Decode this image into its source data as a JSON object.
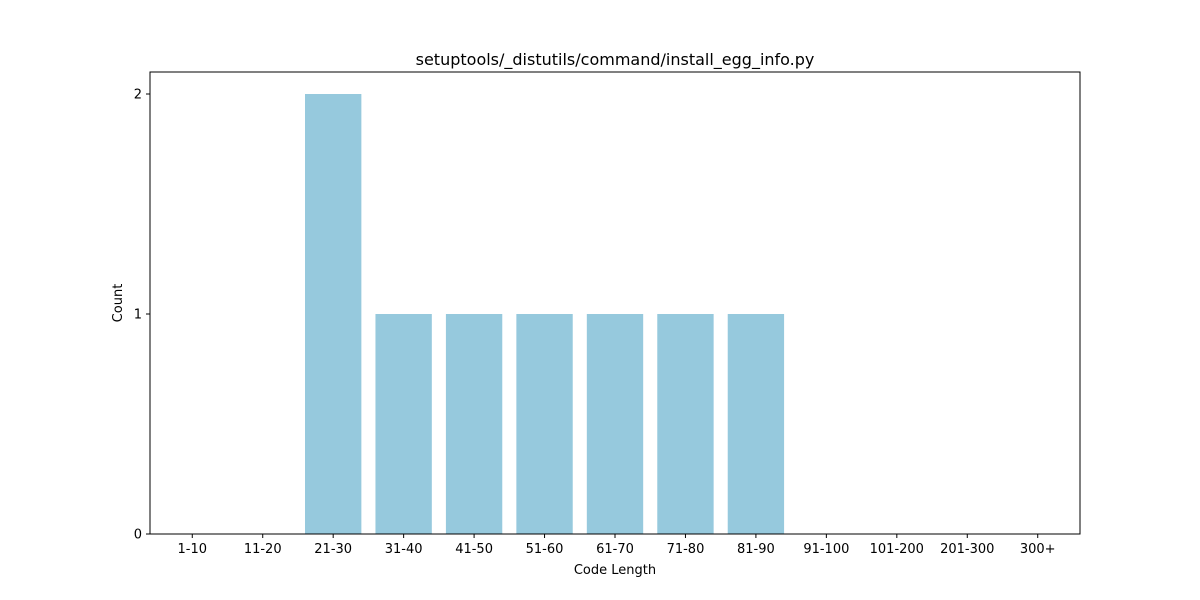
{
  "chart_data": {
    "type": "bar",
    "title": "setuptools/_distutils/command/install_egg_info.py",
    "xlabel": "Code Length",
    "ylabel": "Count",
    "categories": [
      "1-10",
      "11-20",
      "21-30",
      "31-40",
      "41-50",
      "51-60",
      "61-70",
      "71-80",
      "81-90",
      "91-100",
      "101-200",
      "201-300",
      "300+"
    ],
    "values": [
      0,
      0,
      2,
      1,
      1,
      1,
      1,
      1,
      1,
      0,
      0,
      0,
      0
    ],
    "yticks": [
      0,
      1,
      2
    ],
    "ylim": [
      0,
      2.1
    ],
    "grid": false,
    "bar_color": "#96c9dd"
  }
}
